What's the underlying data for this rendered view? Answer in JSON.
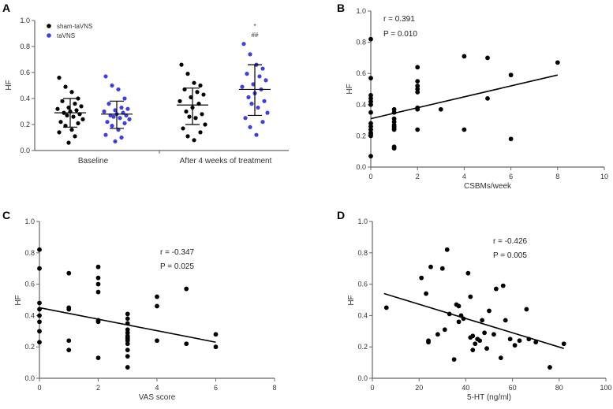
{
  "colors": {
    "sham": "#000000",
    "active": "#4040d8"
  },
  "chart_data": [
    {
      "panel": "A",
      "type": "scatter",
      "ylabel": "HF",
      "ylim": [
        0,
        1.0
      ],
      "yticks": [
        "0.0",
        "0.2",
        "0.4",
        "0.6",
        "0.8",
        "1.0"
      ],
      "categories": [
        "Baseline",
        "After 4 weeks of treatment"
      ],
      "legend": [
        "sham-taVNS",
        "taVNS"
      ],
      "annotation": {
        "star": "*",
        "hash": "##"
      },
      "groups": [
        {
          "category": 0,
          "series": "sham-taVNS",
          "mean": 0.29,
          "sd_low": 0.18,
          "sd_high": 0.4,
          "values": [
            0.56,
            0.49,
            0.45,
            0.4,
            0.38,
            0.36,
            0.34,
            0.33,
            0.32,
            0.31,
            0.3,
            0.29,
            0.28,
            0.27,
            0.26,
            0.24,
            0.22,
            0.21,
            0.19,
            0.16,
            0.14,
            0.11,
            0.06
          ]
        },
        {
          "category": 0,
          "series": "taVNS",
          "mean": 0.28,
          "sd_low": 0.17,
          "sd_high": 0.38,
          "values": [
            0.57,
            0.5,
            0.47,
            0.4,
            0.36,
            0.33,
            0.32,
            0.31,
            0.3,
            0.29,
            0.28,
            0.27,
            0.27,
            0.26,
            0.25,
            0.24,
            0.22,
            0.21,
            0.19,
            0.16,
            0.12,
            0.1,
            0.07
          ]
        },
        {
          "category": 1,
          "series": "sham-taVNS",
          "mean": 0.35,
          "sd_low": 0.2,
          "sd_high": 0.48,
          "values": [
            0.66,
            0.59,
            0.52,
            0.5,
            0.47,
            0.45,
            0.43,
            0.41,
            0.38,
            0.36,
            0.33,
            0.3,
            0.28,
            0.26,
            0.25,
            0.2,
            0.17,
            0.14,
            0.11,
            0.08
          ]
        },
        {
          "category": 1,
          "series": "taVNS",
          "mean": 0.47,
          "sd_low": 0.27,
          "sd_high": 0.66,
          "values": [
            0.82,
            0.74,
            0.66,
            0.63,
            0.59,
            0.57,
            0.54,
            0.51,
            0.49,
            0.47,
            0.44,
            0.41,
            0.38,
            0.36,
            0.33,
            0.29,
            0.25,
            0.22,
            0.18,
            0.12
          ]
        }
      ]
    },
    {
      "panel": "B",
      "type": "scatter",
      "xlabel": "CSBMs/week",
      "ylabel": "HF",
      "xlim": [
        0,
        10
      ],
      "ylim": [
        0,
        1.0
      ],
      "xticks": [
        "0",
        "2",
        "4",
        "6",
        "8",
        "10"
      ],
      "yticks": [
        "0.0",
        "0.2",
        "0.4",
        "0.6",
        "0.8",
        "1.0"
      ],
      "stats": {
        "r": "r = 0.391",
        "p": "P = 0.010"
      },
      "fit": {
        "x": [
          0,
          8
        ],
        "y": [
          0.31,
          0.59
        ]
      },
      "points": [
        [
          0,
          0.82
        ],
        [
          0,
          0.57
        ],
        [
          0,
          0.46
        ],
        [
          0,
          0.44
        ],
        [
          0,
          0.42
        ],
        [
          0,
          0.4
        ],
        [
          0,
          0.35
        ],
        [
          0,
          0.28
        ],
        [
          0,
          0.26
        ],
        [
          0,
          0.24
        ],
        [
          0,
          0.22
        ],
        [
          0,
          0.21
        ],
        [
          0,
          0.2
        ],
        [
          0,
          0.07
        ],
        [
          1,
          0.37
        ],
        [
          1,
          0.35
        ],
        [
          1,
          0.31
        ],
        [
          1,
          0.29
        ],
        [
          1,
          0.27
        ],
        [
          1,
          0.26
        ],
        [
          1,
          0.25
        ],
        [
          1,
          0.24
        ],
        [
          1,
          0.13
        ],
        [
          1,
          0.12
        ],
        [
          2,
          0.64
        ],
        [
          2,
          0.55
        ],
        [
          2,
          0.52
        ],
        [
          2,
          0.5
        ],
        [
          2,
          0.48
        ],
        [
          2,
          0.38
        ],
        [
          2,
          0.37
        ],
        [
          2,
          0.24
        ],
        [
          3,
          0.37
        ],
        [
          4,
          0.71
        ],
        [
          4,
          0.24
        ],
        [
          5,
          0.7
        ],
        [
          5,
          0.44
        ],
        [
          6,
          0.59
        ],
        [
          6,
          0.18
        ],
        [
          8,
          0.67
        ]
      ]
    },
    {
      "panel": "C",
      "type": "scatter",
      "xlabel": "VAS score",
      "ylabel": "HF",
      "xlim": [
        0,
        8
      ],
      "ylim": [
        0,
        1.0
      ],
      "xticks": [
        "0",
        "2",
        "4",
        "6",
        "8"
      ],
      "yticks": [
        "0.0",
        "0.2",
        "0.4",
        "0.6",
        "0.8",
        "1.0"
      ],
      "stats": {
        "r": "r = -0.347",
        "p": "P = 0.025"
      },
      "fit": {
        "x": [
          0,
          6
        ],
        "y": [
          0.45,
          0.23
        ]
      },
      "points": [
        [
          0,
          0.82
        ],
        [
          0,
          0.7
        ],
        [
          0,
          0.48
        ],
        [
          0,
          0.44
        ],
        [
          0,
          0.4
        ],
        [
          0,
          0.36
        ],
        [
          0,
          0.3
        ],
        [
          0,
          0.23
        ],
        [
          1,
          0.67
        ],
        [
          1,
          0.45
        ],
        [
          1,
          0.44
        ],
        [
          1,
          0.24
        ],
        [
          1,
          0.18
        ],
        [
          2,
          0.71
        ],
        [
          2,
          0.64
        ],
        [
          2,
          0.6
        ],
        [
          2,
          0.55
        ],
        [
          2,
          0.37
        ],
        [
          2,
          0.36
        ],
        [
          2,
          0.13
        ],
        [
          3,
          0.41
        ],
        [
          3,
          0.38
        ],
        [
          3,
          0.35
        ],
        [
          3,
          0.31
        ],
        [
          3,
          0.29
        ],
        [
          3,
          0.27
        ],
        [
          3,
          0.26
        ],
        [
          3,
          0.25
        ],
        [
          3,
          0.24
        ],
        [
          3,
          0.22
        ],
        [
          3,
          0.18
        ],
        [
          3,
          0.14
        ],
        [
          3,
          0.07
        ],
        [
          4,
          0.52
        ],
        [
          4,
          0.46
        ],
        [
          4,
          0.24
        ],
        [
          5,
          0.57
        ],
        [
          5,
          0.22
        ],
        [
          6,
          0.28
        ],
        [
          6,
          0.2
        ]
      ]
    },
    {
      "panel": "D",
      "type": "scatter",
      "xlabel": "5-HT (ng/ml)",
      "ylabel": "HF",
      "xlim": [
        0,
        100
      ],
      "ylim": [
        0,
        1.0
      ],
      "xticks": [
        "0",
        "20",
        "40",
        "60",
        "80",
        "100"
      ],
      "yticks": [
        "0.0",
        "0.2",
        "0.4",
        "0.6",
        "0.8",
        "1.0"
      ],
      "stats": {
        "r": "r = -0.426",
        "p": "P = 0.005"
      },
      "fit": {
        "x": [
          5,
          82
        ],
        "y": [
          0.54,
          0.19
        ]
      },
      "points": [
        [
          6,
          0.45
        ],
        [
          21,
          0.64
        ],
        [
          23,
          0.54
        ],
        [
          24,
          0.24
        ],
        [
          24,
          0.23
        ],
        [
          25,
          0.71
        ],
        [
          28,
          0.28
        ],
        [
          30,
          0.7
        ],
        [
          31,
          0.31
        ],
        [
          32,
          0.82
        ],
        [
          33,
          0.41
        ],
        [
          35,
          0.12
        ],
        [
          36,
          0.47
        ],
        [
          37,
          0.46
        ],
        [
          37,
          0.36
        ],
        [
          38,
          0.4
        ],
        [
          39,
          0.38
        ],
        [
          41,
          0.67
        ],
        [
          42,
          0.52
        ],
        [
          42,
          0.26
        ],
        [
          43,
          0.27
        ],
        [
          43,
          0.18
        ],
        [
          44,
          0.22
        ],
        [
          45,
          0.25
        ],
        [
          46,
          0.24
        ],
        [
          47,
          0.37
        ],
        [
          48,
          0.29
        ],
        [
          49,
          0.19
        ],
        [
          50,
          0.43
        ],
        [
          52,
          0.28
        ],
        [
          53,
          0.57
        ],
        [
          55,
          0.13
        ],
        [
          56,
          0.59
        ],
        [
          57,
          0.37
        ],
        [
          59,
          0.25
        ],
        [
          61,
          0.21
        ],
        [
          63,
          0.24
        ],
        [
          66,
          0.44
        ],
        [
          67,
          0.25
        ],
        [
          70,
          0.23
        ],
        [
          76,
          0.07
        ],
        [
          82,
          0.22
        ]
      ]
    }
  ]
}
